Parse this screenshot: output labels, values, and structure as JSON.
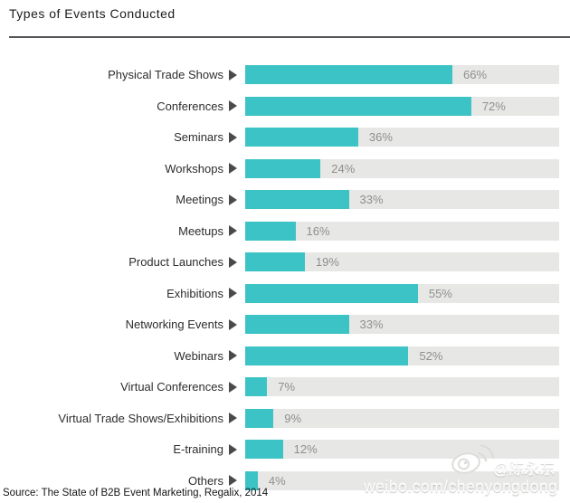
{
  "title": "Types of Events Conducted",
  "source": "Source: The State of B2B Event Marketing, Regalix, 2014",
  "watermark": {
    "handle": "@陈永东",
    "url": "weibo.com/chenyongdong",
    "logo": "weibo-logo"
  },
  "colors": {
    "bar_fill": "#3cc3c6",
    "bar_track": "#e7e7e5",
    "percent_text": "#8f8f8f",
    "label_text": "#2d2d2d",
    "arrow": "#4a4a4a",
    "title_rule": "#54545a",
    "watermark_text": "#f3f3f1"
  },
  "chart_data": {
    "type": "bar",
    "orientation": "horizontal",
    "title": "Types of Events Conducted",
    "unit": "%",
    "xlim": [
      0,
      100
    ],
    "grid": false,
    "legend": false,
    "categories": [
      "Physical Trade Shows",
      "Conferences",
      "Seminars",
      "Workshops",
      "Meetings",
      "Meetups",
      "Product Launches",
      "Exhibitions",
      "Networking Events",
      "Webinars",
      "Virtual Conferences",
      "Virtual Trade Shows/Exhibitions",
      "E-training",
      "Others"
    ],
    "values": [
      66,
      72,
      36,
      24,
      33,
      16,
      19,
      55,
      33,
      52,
      7,
      9,
      12,
      4
    ]
  }
}
